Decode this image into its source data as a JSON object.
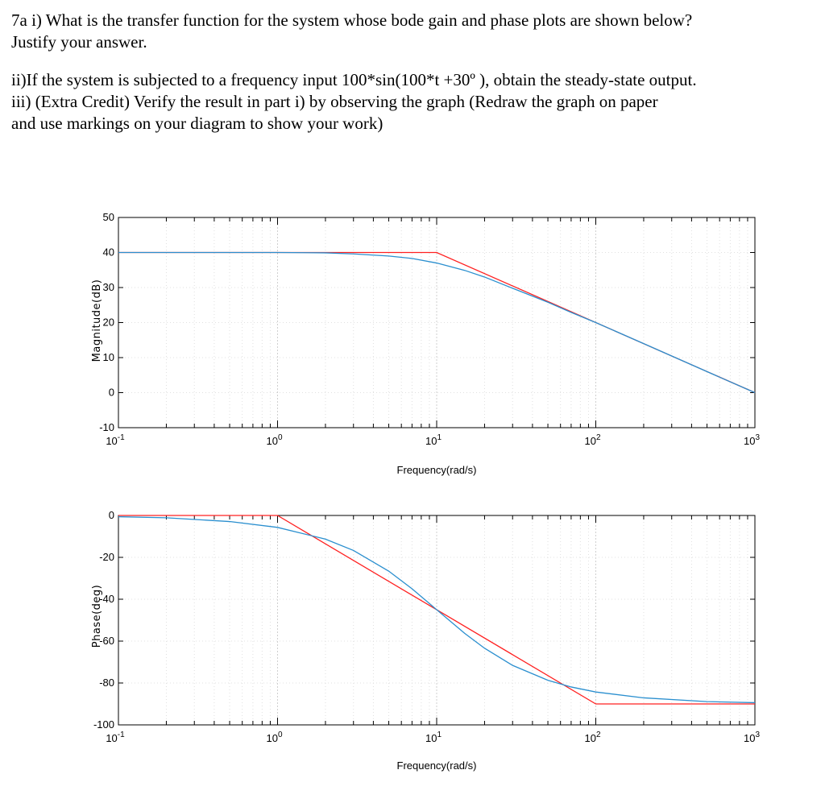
{
  "question": {
    "line1": "7a   i) What is the transfer function for the system whose bode gain and phase plots are shown below?",
    "line2": "Justify your answer.",
    "line3": "ii)If the system is subjected to a frequency input 100*sin(100*t +30º ), obtain the steady-state output.",
    "line4": "iii) (Extra Credit) Verify the result in part i) by observing the graph (Redraw the graph on paper",
    "line5": "and use markings on your diagram to show your work)"
  },
  "colors": {
    "asymptote": "#ff2020",
    "actual": "#2a8fcf",
    "grid": "#e0e0e0",
    "axis": "#000000"
  },
  "chart_data": [
    {
      "type": "line",
      "id": "magnitude",
      "xlabel": "Frequency(rad/s)",
      "ylabel": "Magnitude(dB)",
      "xscale": "log",
      "xlim": [
        0.1,
        1000
      ],
      "ylim": [
        -10,
        50
      ],
      "xticks": [
        0.1,
        1,
        10,
        100,
        1000
      ],
      "xtick_labels": [
        {
          "base": "10",
          "exp": "-1"
        },
        {
          "base": "10",
          "exp": "0"
        },
        {
          "base": "10",
          "exp": "1"
        },
        {
          "base": "10",
          "exp": "2"
        },
        {
          "base": "10",
          "exp": "3"
        }
      ],
      "yticks": [
        50,
        40,
        30,
        20,
        10,
        0,
        -10
      ],
      "grid": true,
      "series": [
        {
          "role": "asymptote",
          "x": [
            0.1,
            10,
            1000
          ],
          "y": [
            40,
            40,
            0
          ]
        },
        {
          "role": "actual",
          "x": [
            0.1,
            1,
            2,
            3,
            5,
            7,
            10,
            15,
            20,
            30,
            50,
            70,
            100,
            200,
            500,
            1000
          ],
          "y": [
            40,
            40,
            39.9,
            39.6,
            39.0,
            38.3,
            37.0,
            34.9,
            33.0,
            29.8,
            25.8,
            22.9,
            20.0,
            14.0,
            6.0,
            0
          ]
        }
      ]
    },
    {
      "type": "line",
      "id": "phase",
      "xlabel": "Frequency(rad/s)",
      "ylabel": "Phase(deg)",
      "xscale": "log",
      "xlim": [
        0.1,
        1000
      ],
      "ylim": [
        -100,
        0
      ],
      "ytick_top": 0,
      "xticks": [
        0.1,
        1,
        10,
        100,
        1000
      ],
      "xtick_labels": [
        {
          "base": "10",
          "exp": "-1"
        },
        {
          "base": "10",
          "exp": "0"
        },
        {
          "base": "10",
          "exp": "1"
        },
        {
          "base": "10",
          "exp": "2"
        },
        {
          "base": "10",
          "exp": "3"
        }
      ],
      "yticks": [
        0,
        -20,
        -40,
        -60,
        -80,
        -100
      ],
      "grid": true,
      "series": [
        {
          "role": "asymptote",
          "x": [
            0.1,
            1,
            100,
            1000
          ],
          "y": [
            0,
            0,
            -90,
            -90
          ]
        },
        {
          "role": "actual",
          "x": [
            0.1,
            0.2,
            0.5,
            1,
            2,
            3,
            5,
            7,
            10,
            15,
            20,
            30,
            50,
            70,
            100,
            200,
            500,
            1000
          ],
          "y": [
            -0.6,
            -1.1,
            -2.9,
            -5.7,
            -11.3,
            -16.7,
            -26.6,
            -35.0,
            -45.0,
            -56.3,
            -63.4,
            -71.6,
            -78.7,
            -81.9,
            -84.3,
            -87.1,
            -88.9,
            -89.4
          ]
        }
      ]
    }
  ]
}
